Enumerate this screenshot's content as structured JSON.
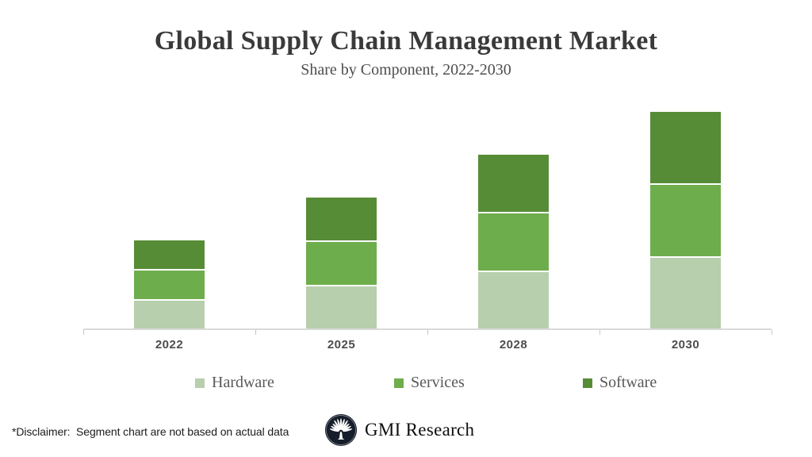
{
  "header": {
    "title": "Global Supply Chain Management Market",
    "subtitle": "Share by Component, 2022-2030"
  },
  "chart_data": {
    "type": "bar",
    "stacked": true,
    "title": "Global Supply Chain Management Market",
    "subtitle": "Share by Component, 2022-2030",
    "categories": [
      "2022",
      "2025",
      "2028",
      "2030"
    ],
    "series": [
      {
        "name": "Hardware",
        "color": "#b7cfac",
        "values": [
          12,
          18,
          24,
          30
        ]
      },
      {
        "name": "Services",
        "color": "#6ead4c",
        "values": [
          12,
          18,
          24,
          30
        ]
      },
      {
        "name": "Software",
        "color": "#578c36",
        "values": [
          12,
          18,
          24,
          30
        ]
      }
    ],
    "unit": "relative share (illustrative, per on-slide disclaimer)",
    "xlabel": "",
    "ylabel": "",
    "y_axis_visible": false,
    "grid": false,
    "legend_position": "bottom",
    "legend": [
      "Hardware",
      "Services",
      "Software"
    ]
  },
  "footer": {
    "disclaimer": "*Disclaimer:  Segment chart are not based on actual data",
    "brand": "GMI Research"
  },
  "colors": {
    "hardware": "#b7cfac",
    "services": "#6ead4c",
    "software": "#578c36",
    "axis_line": "#d9d9d9",
    "tick": "#c6c6c6",
    "title_text": "#3a3a3a",
    "logo_navy": "#161e2b"
  },
  "icons": {
    "logo": "gmi-fan-tree-icon"
  }
}
